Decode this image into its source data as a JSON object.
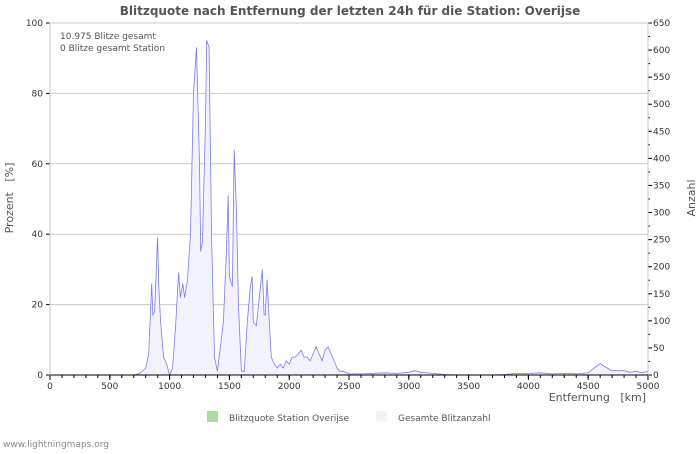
{
  "chart_data": {
    "type": "area",
    "title": "Blitzquote nach Entfernung der letzten 24h für die Station: Overijse",
    "xlabel": "Entfernung   [km]",
    "ylabel": "Prozent   [%]",
    "y2label": "Anzahl",
    "xlim": [
      0,
      5000
    ],
    "ylim": [
      0,
      100
    ],
    "y2lim": [
      0,
      650
    ],
    "x_ticks": [
      0,
      500,
      1000,
      1500,
      2000,
      2500,
      3000,
      3500,
      4000,
      4500,
      5000
    ],
    "y_ticks": [
      0,
      20,
      40,
      60,
      80,
      100
    ],
    "y2_ticks": [
      0,
      50,
      100,
      150,
      200,
      250,
      300,
      350,
      400,
      450,
      500,
      550,
      600,
      650
    ],
    "grid": true,
    "annotations": [
      "10.975 Blitze gesamt",
      "0 Blitze gesamt Station"
    ],
    "legend_position": "bottom",
    "series": [
      {
        "name": "Blitzquote Station Overijse",
        "axis": "left",
        "color": "#a8dca0",
        "x": [
          0,
          5000
        ],
        "values": [
          0,
          0
        ]
      },
      {
        "name": "Gesamte Blitzanzahl",
        "axis": "right",
        "color": "#7b7bf0",
        "fill": "#f2f2fc",
        "x": [
          0,
          700,
          750,
          800,
          825,
          850,
          860,
          875,
          900,
          910,
          925,
          950,
          975,
          1000,
          1025,
          1050,
          1075,
          1090,
          1110,
          1125,
          1150,
          1175,
          1200,
          1225,
          1250,
          1260,
          1275,
          1300,
          1310,
          1330,
          1350,
          1375,
          1400,
          1425,
          1450,
          1475,
          1490,
          1500,
          1525,
          1540,
          1560,
          1575,
          1600,
          1625,
          1650,
          1675,
          1690,
          1700,
          1725,
          1750,
          1775,
          1790,
          1800,
          1815,
          1830,
          1850,
          1875,
          1900,
          1925,
          1950,
          1975,
          2000,
          2025,
          2050,
          2075,
          2100,
          2125,
          2150,
          2175,
          2200,
          2225,
          2250,
          2275,
          2300,
          2325,
          2350,
          2375,
          2400,
          2425,
          2450,
          2500,
          2600,
          2700,
          2800,
          2900,
          3000,
          3050,
          3100,
          3200,
          3300,
          3400,
          3500,
          3700,
          3800,
          3900,
          4000,
          4100,
          4200,
          4300,
          4400,
          4500,
          4550,
          4600,
          4650,
          4700,
          4800,
          4850,
          4900,
          4950,
          5000
        ],
        "values": [
          0,
          0,
          3,
          13,
          39,
          169,
          111,
          117,
          254,
          163,
          98,
          33,
          20,
          0,
          13,
          91,
          189,
          143,
          169,
          143,
          176,
          260,
          520,
          605,
          390,
          228,
          247,
          468,
          618,
          605,
          260,
          33,
          7,
          52,
          98,
          228,
          332,
          182,
          163,
          416,
          293,
          130,
          7,
          7,
          98,
          163,
          182,
          98,
          91,
          143,
          195,
          111,
          111,
          176,
          111,
          33,
          20,
          13,
          20,
          13,
          26,
          20,
          33,
          33,
          39,
          46,
          33,
          33,
          26,
          39,
          52,
          39,
          26,
          46,
          52,
          39,
          26,
          13,
          7,
          7,
          2,
          2,
          3,
          4,
          3,
          5,
          8,
          5,
          3,
          1,
          0,
          0,
          0,
          1,
          3,
          3,
          4,
          2,
          3,
          2,
          4,
          13,
          21,
          14,
          8,
          8,
          5,
          7,
          4,
          7
        ]
      }
    ]
  },
  "footer": "www.lightningmaps.org"
}
